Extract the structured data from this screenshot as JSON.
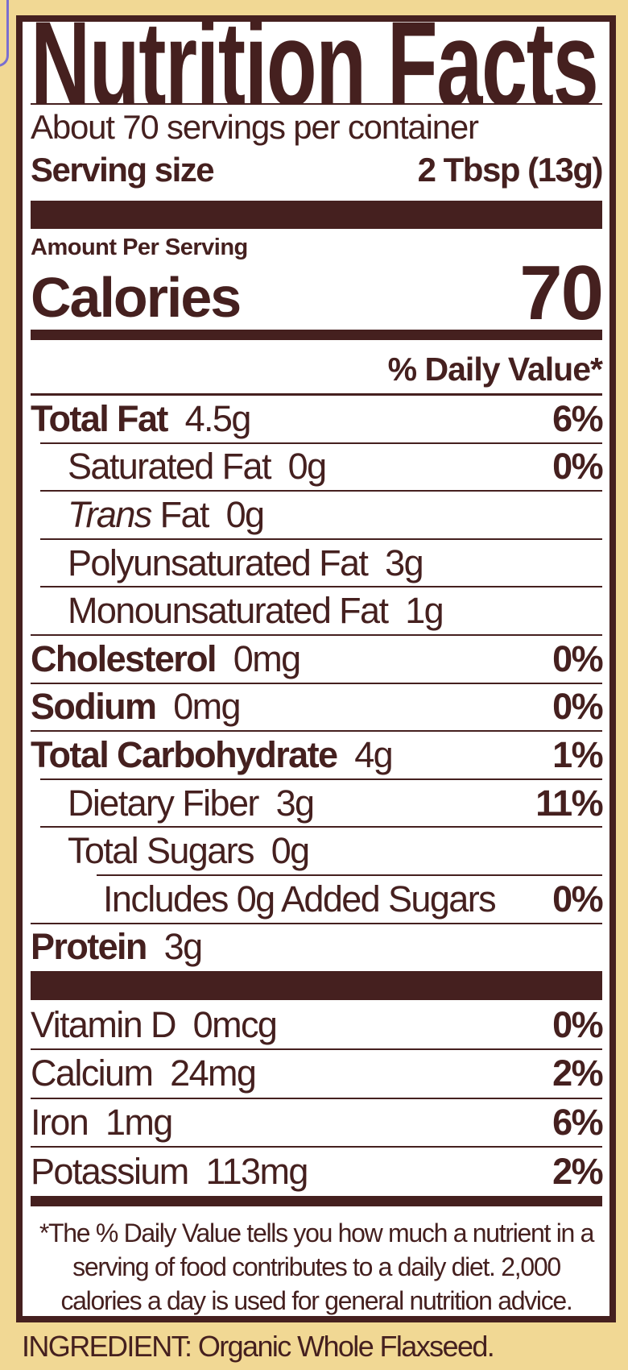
{
  "colors": {
    "ink": "#45201f",
    "background": "#f1d894",
    "panel": "#ffffff"
  },
  "label": {
    "title": "Nutrition Facts",
    "servings_per_container": "About 70 servings per container",
    "serving_size_label": "Serving size",
    "serving_size_value": "2 Tbsp (13g)",
    "amount_per_serving": "Amount Per Serving",
    "calories_label": "Calories",
    "calories_value": "70",
    "daily_value_header": "% Daily Value*",
    "nutrients": [
      {
        "name": "Total Fat",
        "amount": "4.5g",
        "dv": "6%",
        "bold": true,
        "indent": 0
      },
      {
        "name": "Saturated Fat",
        "amount": "0g",
        "dv": "0%",
        "bold": false,
        "indent": 1
      },
      {
        "name_italic": "Trans",
        "name": "Fat",
        "amount": "0g",
        "dv": "",
        "bold": false,
        "indent": 1
      },
      {
        "name": "Polyunsaturated Fat",
        "amount": "3g",
        "dv": "",
        "bold": false,
        "indent": 1
      },
      {
        "name": "Monounsaturated Fat",
        "amount": "1g",
        "dv": "",
        "bold": false,
        "indent": 1
      },
      {
        "name": "Cholesterol",
        "amount": "0mg",
        "dv": "0%",
        "bold": true,
        "indent": 0
      },
      {
        "name": "Sodium",
        "amount": "0mg",
        "dv": "0%",
        "bold": true,
        "indent": 0
      },
      {
        "name": "Total Carbohydrate",
        "amount": "4g",
        "dv": "1%",
        "bold": true,
        "indent": 0
      },
      {
        "name": "Dietary Fiber",
        "amount": "3g",
        "dv": "11%",
        "bold": false,
        "indent": 1
      },
      {
        "name": "Total Sugars",
        "amount": "0g",
        "dv": "",
        "bold": false,
        "indent": 1
      },
      {
        "name": "Includes 0g Added Sugars",
        "amount": "",
        "dv": "0%",
        "bold": false,
        "indent": 2
      },
      {
        "name": "Protein",
        "amount": "3g",
        "dv": "",
        "bold": true,
        "indent": 0
      }
    ],
    "vitamins": [
      {
        "name": "Vitamin D",
        "amount": "0mcg",
        "dv": "0%"
      },
      {
        "name": "Calcium",
        "amount": "24mg",
        "dv": "2%"
      },
      {
        "name": "Iron",
        "amount": "1mg",
        "dv": "6%"
      },
      {
        "name": "Potassium",
        "amount": "113mg",
        "dv": "2%"
      }
    ],
    "footnote": "*The % Daily Value tells you how much a nutrient in a serving of food contributes to a daily diet. 2,000 calories a day is used for general nutrition advice."
  },
  "ingredients": "INGREDIENT: Organic Whole Flaxseed."
}
